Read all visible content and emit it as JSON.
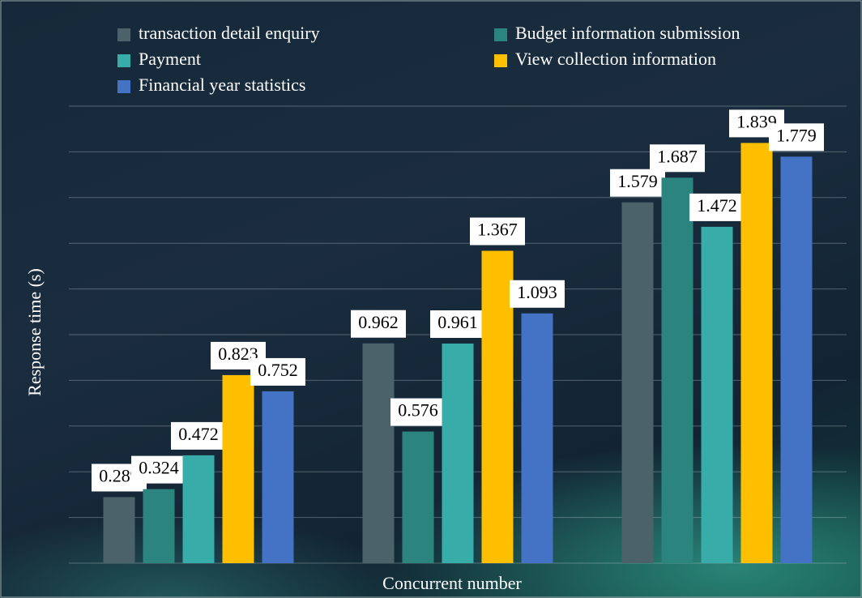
{
  "chart_data": {
    "type": "bar",
    "x_label": "Concurrent number",
    "y_label": "Response time (s)",
    "categories": [
      null,
      null,
      null
    ],
    "series": [
      {
        "name": "transaction detail enquiry",
        "color": "#4b626b",
        "values": [
          0.289,
          0.962,
          1.579
        ]
      },
      {
        "name": "Budget information submission",
        "color": "#2c847f",
        "values": [
          0.324,
          0.576,
          1.687
        ]
      },
      {
        "name": "Payment",
        "color": "#38aca8",
        "values": [
          0.472,
          0.961,
          1.472
        ]
      },
      {
        "name": "View collection information",
        "color": "#fdbf00",
        "values": [
          0.823,
          1.367,
          1.839
        ]
      },
      {
        "name": "Financial year statistics",
        "color": "#4472c4",
        "values": [
          0.752,
          1.093,
          1.779
        ]
      }
    ],
    "ylim": [
      0,
      2
    ],
    "yticks": [
      0,
      0.2,
      0.4,
      0.6,
      0.8,
      1,
      1.2,
      1.4,
      1.6,
      1.8,
      2
    ],
    "grid": true
  }
}
